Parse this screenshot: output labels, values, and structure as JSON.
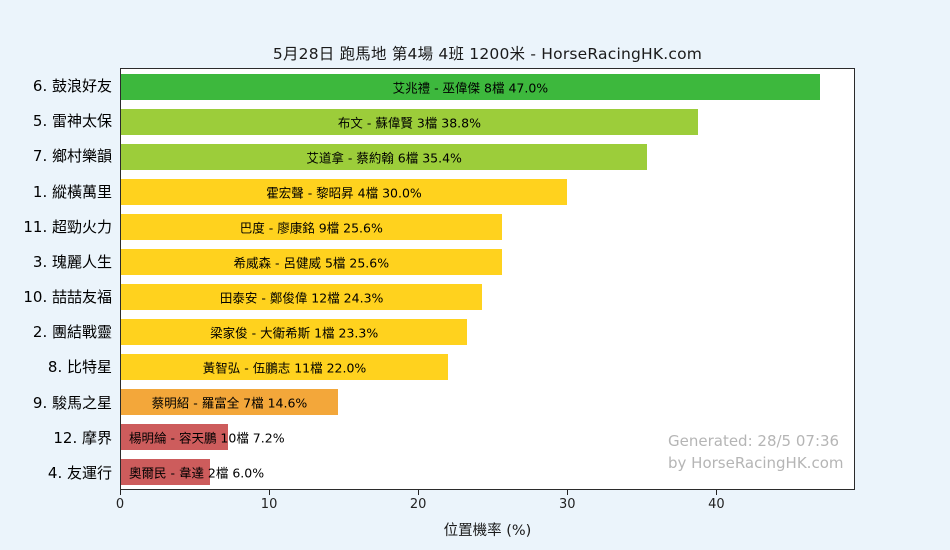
{
  "page": {
    "title": "5月28日  跑馬地  第4場  4班  1200米 - HorseRacingHK.com"
  },
  "watermark": {
    "line1": "Generated: 28/5 07:36",
    "line2": "by HorseRacingHK.com"
  },
  "chart_data": {
    "type": "bar",
    "orientation": "horizontal",
    "title": "5月28日  跑馬地  第4場  4班  1200米 - HorseRacingHK.com",
    "xlabel": "位置機率 (%)",
    "ylabel": "",
    "xlim": [
      0,
      49.3
    ],
    "xticks": [
      0,
      10,
      20,
      30,
      40
    ],
    "grid": false,
    "plot_bg": "#ffffff",
    "fig_bg": "#ebf4fb",
    "legend": null,
    "bars": [
      {
        "label": "6. 鼓浪好友",
        "annotation": "艾兆禮 - 巫偉傑 8檔  47.0%",
        "value": 47.0,
        "color": "#3db83d"
      },
      {
        "label": "5. 雷神太保",
        "annotation": "布文 - 蘇偉賢 3檔  38.8%",
        "value": 38.8,
        "color": "#9ccd3a"
      },
      {
        "label": "7. 鄉村樂韻",
        "annotation": "艾道拿 - 蔡約翰 6檔  35.4%",
        "value": 35.4,
        "color": "#9ccd3a"
      },
      {
        "label": "1. 縱橫萬里",
        "annotation": "霍宏聲 - 黎昭昇 4檔  30.0%",
        "value": 30.0,
        "color": "#ffd21e"
      },
      {
        "label": "11. 超勁火力",
        "annotation": "巴度 - 廖康銘 9檔  25.6%",
        "value": 25.6,
        "color": "#ffd21e"
      },
      {
        "label": "3. 瑰麗人生",
        "annotation": "希威森 - 呂健威 5檔  25.6%",
        "value": 25.6,
        "color": "#ffd21e"
      },
      {
        "label": "10. 喆喆友福",
        "annotation": "田泰安 - 鄭俊偉 12檔  24.3%",
        "value": 24.3,
        "color": "#ffd21e"
      },
      {
        "label": "2. 團結戰靈",
        "annotation": "梁家俊 - 大衛希斯 1檔  23.3%",
        "value": 23.3,
        "color": "#ffd21e"
      },
      {
        "label": "8. 比特星",
        "annotation": "黃智弘 - 伍鵬志 11檔  22.0%",
        "value": 22.0,
        "color": "#ffd21e"
      },
      {
        "label": "9. 駿馬之星",
        "annotation": "蔡明紹 - 羅富全 7檔  14.6%",
        "value": 14.6,
        "color": "#f3a73a"
      },
      {
        "label": "12. 摩界",
        "annotation": "楊明綸 - 容天鵬 10檔  7.2%",
        "value": 7.2,
        "color": "#cd5c5c"
      },
      {
        "label": "4. 友運行",
        "annotation": "奧爾民 - 韋達 2檔  6.0%",
        "value": 6.0,
        "color": "#cd5c5c"
      }
    ]
  }
}
